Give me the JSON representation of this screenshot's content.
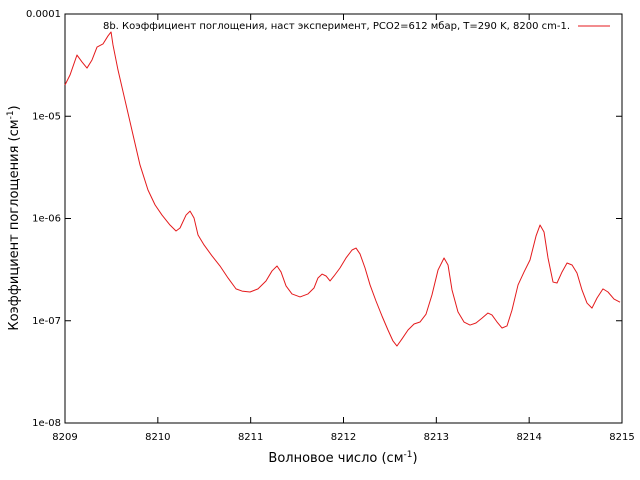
{
  "chart_data": {
    "type": "line",
    "legend": "8b. Коэффициент поглощения, наст эксперимент, PCO2=612 мбар, T=290 K, 8200 cm-1.",
    "legend_position": "top-right",
    "xlabel": {
      "text": "Волновое число (см",
      "sup": "-1",
      "tail": ")"
    },
    "ylabel": {
      "text": "Коэффициент поглощения (см",
      "sup": "-1",
      "tail": ")"
    },
    "xlim": [
      8209,
      8215
    ],
    "xticks": [
      8209,
      8210,
      8211,
      8212,
      8213,
      8214,
      8215
    ],
    "ylim": [
      1e-08,
      0.0001
    ],
    "log_y": true,
    "yticks": [
      {
        "value": 1e-08,
        "label": "1e-08"
      },
      {
        "value": 1e-07,
        "label": "1e-07"
      },
      {
        "value": 1e-06,
        "label": "1e-06"
      },
      {
        "value": 1e-05,
        "label": "1e-05"
      },
      0.0001
    ],
    "series": [
      {
        "name": "8b. Коэффициент поглощения, наст эксперимент, PCO2=612 мбар, T=290 K, 8200 cm-1.",
        "color": "#e41a1c",
        "x": [
          8209.0,
          8209.054,
          8209.129,
          8209.183,
          8209.237,
          8209.291,
          8209.345,
          8209.409,
          8209.463,
          8209.496,
          8209.517,
          8209.571,
          8209.646,
          8209.733,
          8209.808,
          8209.894,
          8209.97,
          8210.045,
          8210.131,
          8210.196,
          8210.239,
          8210.304,
          8210.347,
          8210.39,
          8210.433,
          8210.498,
          8210.584,
          8210.67,
          8210.756,
          8210.842,
          8210.907,
          8210.993,
          8211.079,
          8211.165,
          8211.23,
          8211.284,
          8211.327,
          8211.381,
          8211.445,
          8211.532,
          8211.618,
          8211.682,
          8211.725,
          8211.769,
          8211.812,
          8211.855,
          8211.898,
          8211.962,
          8212.027,
          8212.092,
          8212.135,
          8212.178,
          8212.232,
          8212.286,
          8212.35,
          8212.415,
          8212.479,
          8212.533,
          8212.576,
          8212.63,
          8212.695,
          8212.76,
          8212.824,
          8212.889,
          8212.953,
          8213.018,
          8213.083,
          8213.126,
          8213.169,
          8213.233,
          8213.298,
          8213.363,
          8213.427,
          8213.492,
          8213.556,
          8213.599,
          8213.654,
          8213.708,
          8213.761,
          8213.815,
          8213.88,
          8213.945,
          8214.009,
          8214.074,
          8214.117,
          8214.16,
          8214.203,
          8214.257,
          8214.3,
          8214.354,
          8214.408,
          8214.462,
          8214.515,
          8214.569,
          8214.623,
          8214.677,
          8214.731,
          8214.795,
          8214.849,
          8214.914,
          8214.979
        ],
        "values": [
          2.02e-05,
          2.53e-05,
          3.97e-05,
          3.4e-05,
          2.96e-05,
          3.55e-05,
          4.75e-05,
          5.09e-05,
          6.1e-05,
          6.67e-05,
          4.98e-05,
          2.83e-05,
          1.44e-05,
          6.56e-06,
          3.34e-06,
          1.9e-06,
          1.36e-06,
          1.08e-06,
          8.63e-07,
          7.55e-07,
          8.07e-07,
          1.08e-06,
          1.18e-06,
          1.01e-06,
          6.9e-07,
          5.51e-07,
          4.3e-07,
          3.43e-07,
          2.62e-07,
          2.05e-07,
          1.95e-07,
          1.91e-07,
          2.05e-07,
          2.45e-07,
          3.07e-07,
          3.43e-07,
          3e-07,
          2.19e-07,
          1.83e-07,
          1.71e-07,
          1.83e-07,
          2.09e-07,
          2.62e-07,
          2.86e-07,
          2.74e-07,
          2.45e-07,
          2.74e-07,
          3.28e-07,
          4.11e-07,
          4.92e-07,
          5.14e-07,
          4.5e-07,
          3.28e-07,
          2.24e-07,
          1.56e-07,
          1.11e-07,
          8.12e-08,
          6.34e-08,
          5.66e-08,
          6.64e-08,
          8.12e-08,
          9.29e-08,
          9.72e-08,
          1.16e-07,
          1.79e-07,
          3.13e-07,
          4.11e-07,
          3.51e-07,
          2e-07,
          1.22e-07,
          9.72e-08,
          9.08e-08,
          9.51e-08,
          1.06e-07,
          1.19e-07,
          1.14e-07,
          9.72e-08,
          8.49e-08,
          8.89e-08,
          1.27e-07,
          2.24e-07,
          3e-07,
          3.93e-07,
          6.75e-07,
          8.63e-07,
          7.38e-07,
          4.11e-07,
          2.39e-07,
          2.34e-07,
          3e-07,
          3.67e-07,
          3.51e-07,
          2.93e-07,
          2e-07,
          1.49e-07,
          1.33e-07,
          1.67e-07,
          2.05e-07,
          1.91e-07,
          1.63e-07,
          1.52e-07
        ]
      }
    ]
  }
}
